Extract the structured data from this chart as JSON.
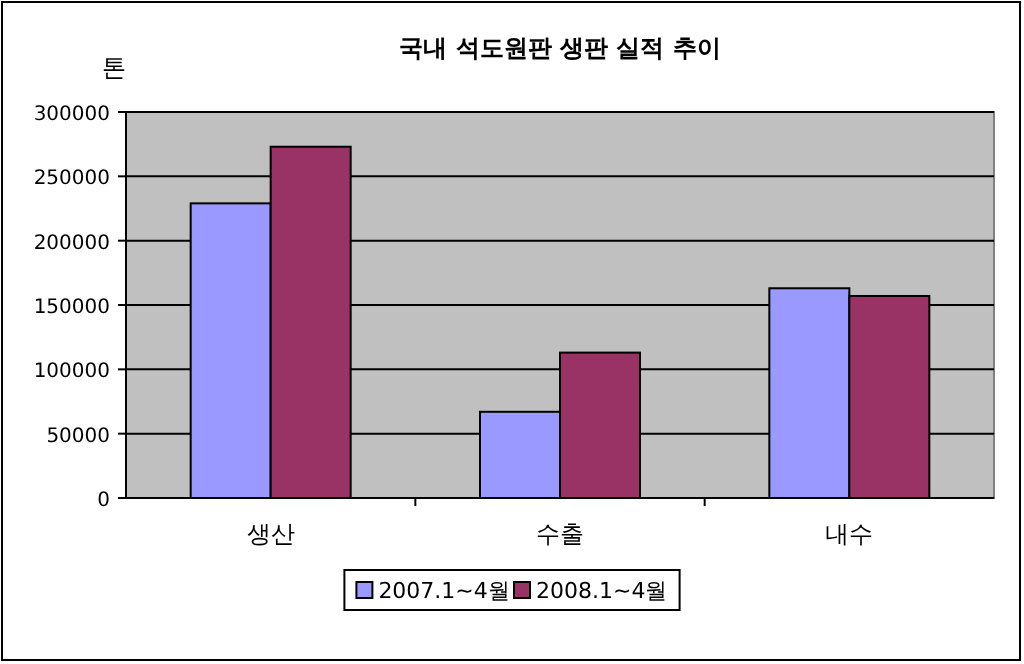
{
  "chart_data": {
    "type": "bar",
    "title": "국내 석도원판 생판 실적 추이",
    "ylabel": "톤",
    "categories": [
      "생산",
      "수출",
      "내수"
    ],
    "series": [
      {
        "name": "2007.1~4월",
        "color": "#9999ff",
        "values": [
          229000,
          67000,
          163000
        ]
      },
      {
        "name": "2008.1~4월",
        "color": "#993366",
        "values": [
          273000,
          113000,
          157000
        ]
      }
    ],
    "ylim": [
      0,
      300000
    ],
    "yticks": [
      0,
      50000,
      100000,
      150000,
      200000,
      250000,
      300000
    ],
    "grid": "y",
    "legend": "bottom"
  }
}
